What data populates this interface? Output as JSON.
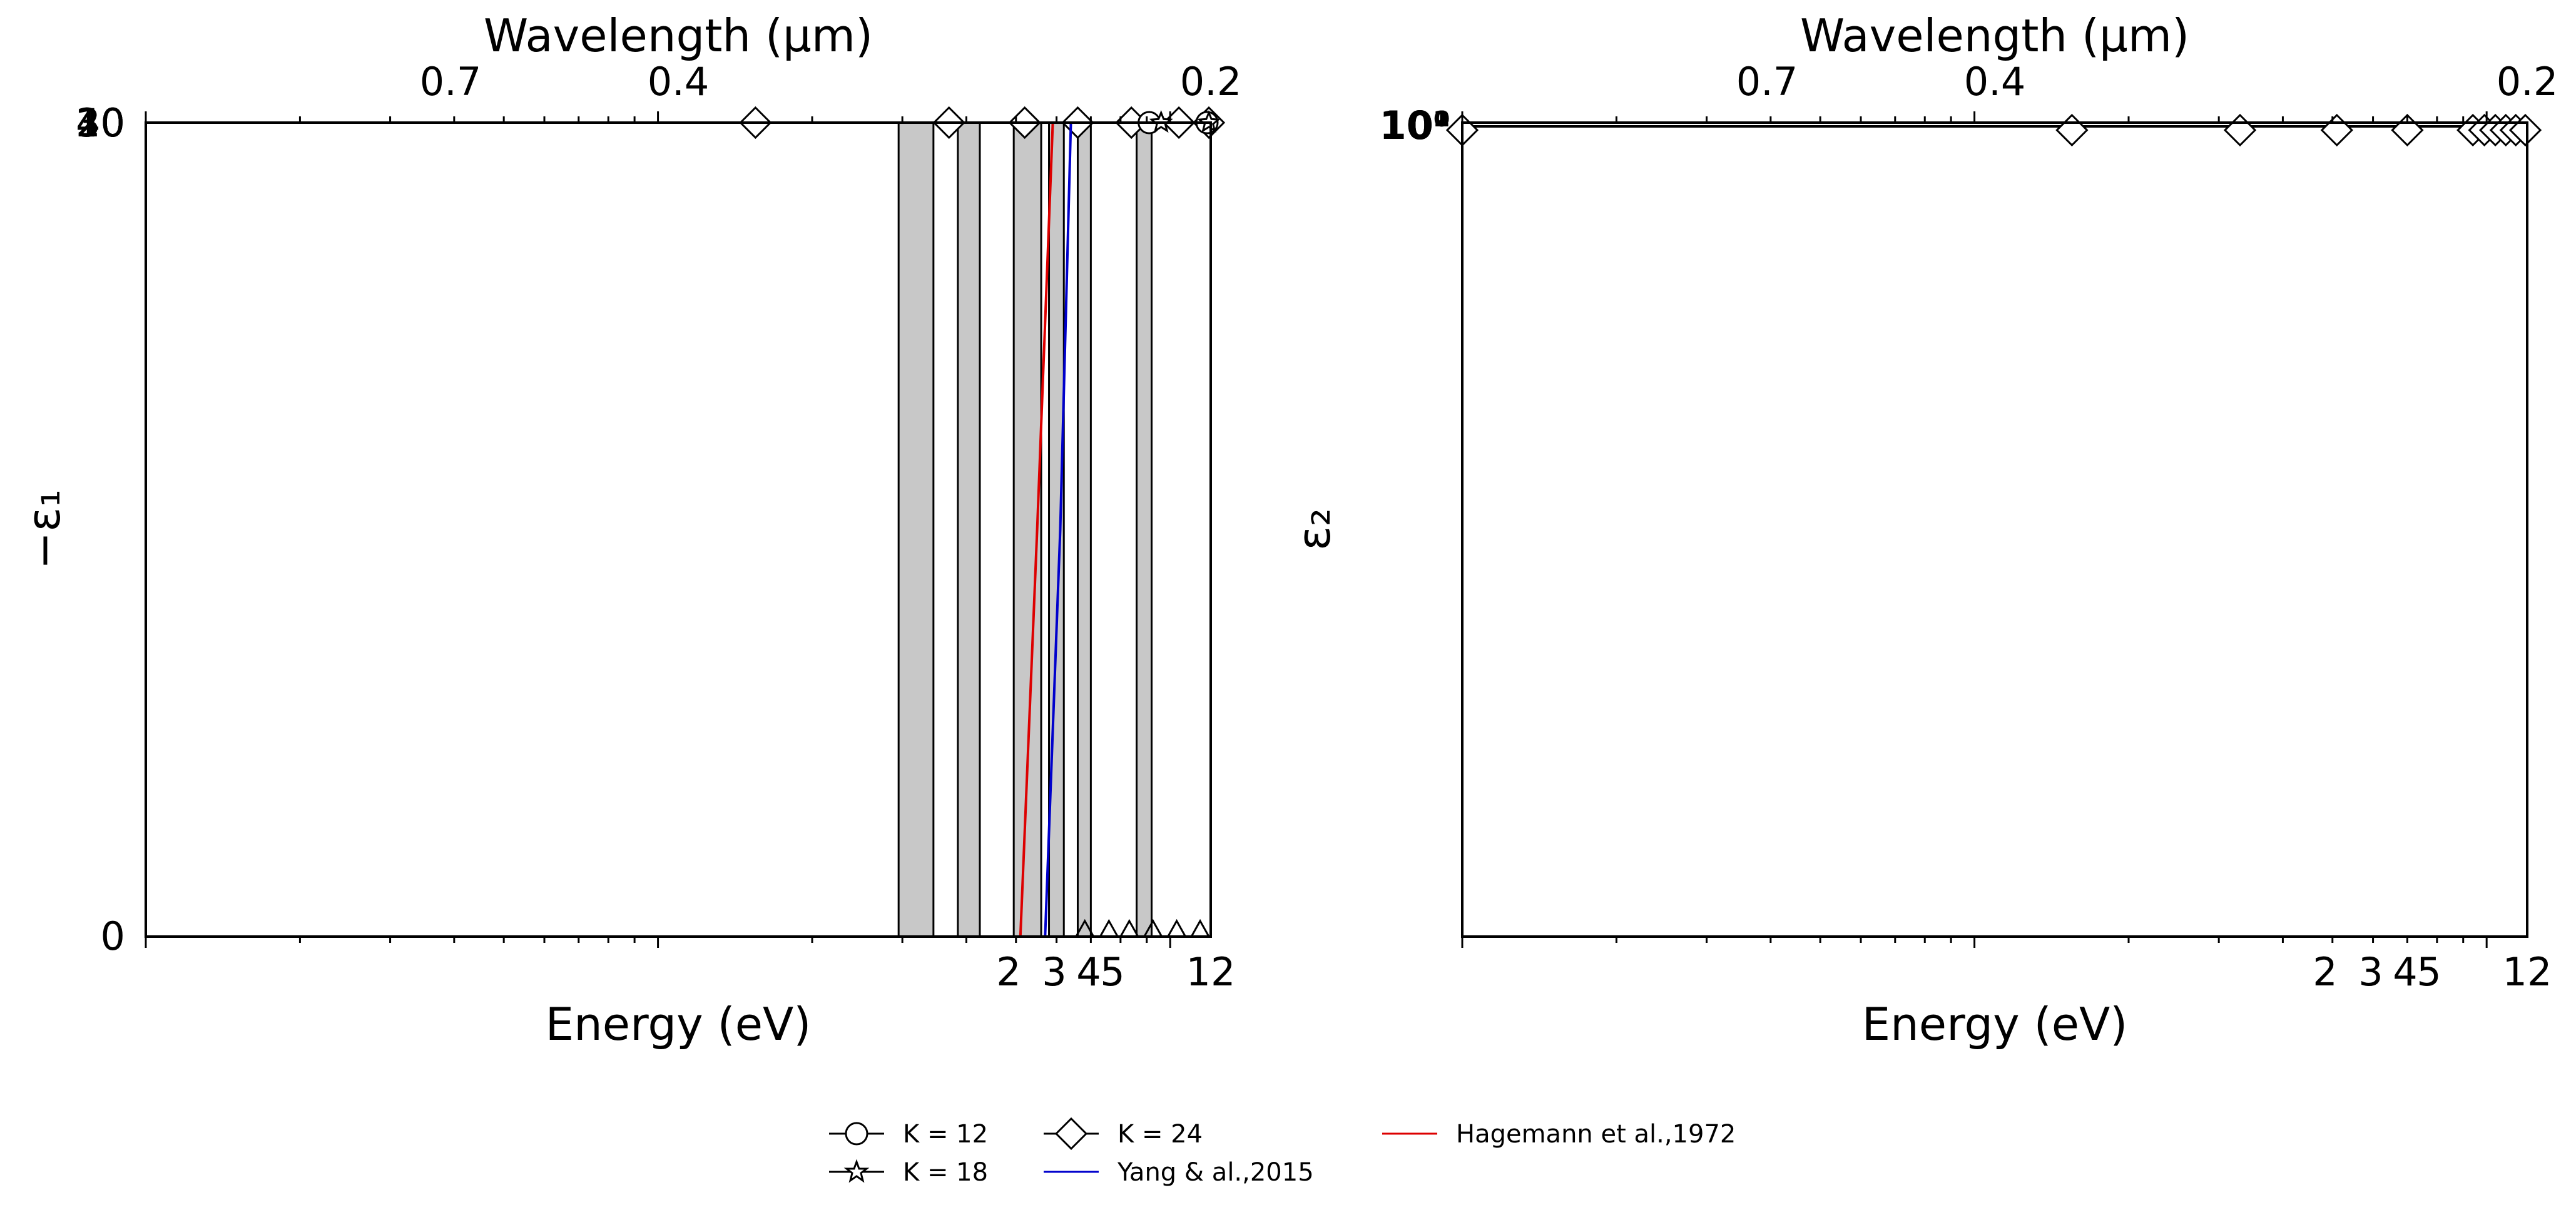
{
  "figure": {
    "legend": {
      "entries": [
        {
          "label": "K = 12",
          "marker": "circle",
          "color": "#000000"
        },
        {
          "label": "K = 18",
          "marker": "star",
          "color": "#000000"
        },
        {
          "label": "K = 24",
          "marker": "diamond",
          "color": "#000000"
        },
        {
          "label": "Yang & al.,2015",
          "marker": "line",
          "color": "#0000cc"
        },
        {
          "label": "Hagemann et al.,1972",
          "marker": "line",
          "color": "#dd0000"
        }
      ],
      "placement": "bottom-center"
    }
  },
  "chart_data": [
    {
      "type": "line",
      "panel": "left",
      "xlabel": "Energy (eV)",
      "ylabel": "−ε₁",
      "top_xlabel": "Wavelength (µm)",
      "xscale": "log",
      "xlim": [
        0.1,
        12
      ],
      "x_ticks": [
        "2",
        "3",
        "4",
        "5",
        "12"
      ],
      "top_ticks": [
        "0.7",
        "0.4",
        "0.2"
      ],
      "ylim": [
        0,
        40
      ],
      "y_ticks": [
        "0",
        "40"
      ],
      "y_tick_overlap_labels": [
        "10",
        "20",
        "30"
      ],
      "grid": false,
      "shaded_bands": [
        [
          2.95,
          3.45
        ],
        [
          3.85,
          4.25
        ],
        [
          4.95,
          5.6
        ],
        [
          5.8,
          6.2
        ],
        [
          6.6,
          7.0
        ],
        [
          8.6,
          9.2
        ]
      ],
      "series": [
        {
          "name": "K = 24",
          "marker": "diamond",
          "x": [
            1.55,
            3.7,
            5.2,
            6.6,
            8.4,
            10.4,
            11.9
          ],
          "y": [
            40,
            40,
            40,
            40,
            40,
            40,
            40
          ]
        },
        {
          "name": "K = 12",
          "marker": "circle",
          "x": [
            9.1,
            11.8
          ],
          "y": [
            40,
            40
          ]
        },
        {
          "name": "K = 18",
          "marker": "star",
          "x": [
            9.6,
            11.9
          ],
          "y": [
            40,
            40
          ]
        },
        {
          "name": "Yang & al.,2015",
          "marker": "line",
          "x": [
            5.7,
            6.1,
            6.4
          ],
          "y": [
            0,
            20,
            40
          ]
        },
        {
          "name": "Hagemann et al.,1972",
          "marker": "line",
          "x": [
            5.1,
            5.5,
            5.9
          ],
          "y": [
            0,
            20,
            40
          ]
        }
      ]
    },
    {
      "type": "line",
      "panel": "right",
      "xlabel": "Energy (eV)",
      "ylabel": "ε₂",
      "top_xlabel": "Wavelength (µm)",
      "xscale": "log",
      "xlim": [
        0.1,
        12
      ],
      "x_ticks": [
        "2",
        "3",
        "4",
        "5",
        "12"
      ],
      "top_ticks": [
        "0.7",
        "0.4",
        "0.2"
      ],
      "y_tick_labels": [
        "10⁰",
        "10¹",
        "10²"
      ],
      "grid": false,
      "series": [
        {
          "name": "K = 24",
          "marker": "diamond",
          "x": [
            0.1,
            1.55,
            3.3,
            5.1,
            7.0,
            9.4
          ],
          "y": [
            1,
            1,
            1,
            1,
            1,
            1
          ]
        }
      ]
    }
  ]
}
